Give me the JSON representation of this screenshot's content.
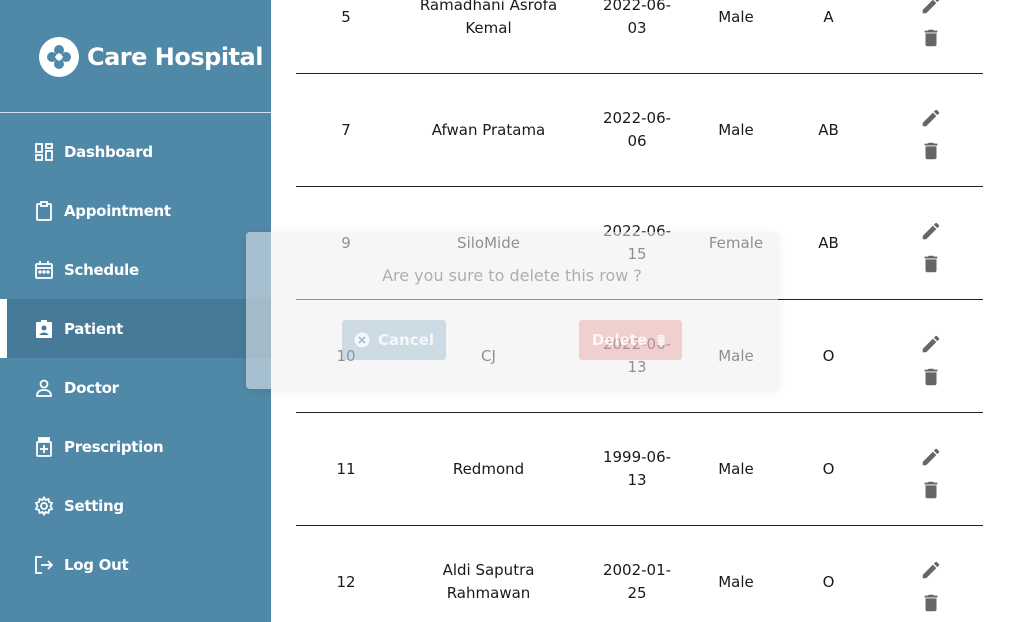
{
  "brand": {
    "name": "Care Hospital",
    "logo_icon": "hospital-cross-logo"
  },
  "sidebar": {
    "items": [
      {
        "label": "Dashboard",
        "icon": "dashboard-icon"
      },
      {
        "label": "Appointment",
        "icon": "clipboard-icon"
      },
      {
        "label": "Schedule",
        "icon": "calendar-icon"
      },
      {
        "label": "Patient",
        "icon": "patient-badge-icon",
        "active": true
      },
      {
        "label": "Doctor",
        "icon": "person-icon"
      },
      {
        "label": "Prescription",
        "icon": "medicine-bottle-icon"
      },
      {
        "label": "Setting",
        "icon": "gear-icon"
      },
      {
        "label": "Log Out",
        "icon": "logout-icon"
      }
    ]
  },
  "table": {
    "rows": [
      {
        "id": "5",
        "name": "Ramadhani Asrofa Kemal",
        "birth_date": "2022-06-03",
        "gender": "Male",
        "blood_type": "A"
      },
      {
        "id": "7",
        "name": "Afwan Pratama",
        "birth_date": "2022-06-06",
        "gender": "Male",
        "blood_type": "AB"
      },
      {
        "id": "9",
        "name": "SiloMide",
        "birth_date": "2022-06-15",
        "gender": "Female",
        "blood_type": "AB"
      },
      {
        "id": "10",
        "name": "CJ",
        "birth_date": "2022-06-13",
        "gender": "Male",
        "blood_type": "O"
      },
      {
        "id": "11",
        "name": "Redmond",
        "birth_date": "1999-06-13",
        "gender": "Male",
        "blood_type": "O"
      },
      {
        "id": "12",
        "name": "Aldi Saputra Rahmawan",
        "birth_date": "2002-01-25",
        "gender": "Male",
        "blood_type": "O"
      }
    ]
  },
  "dialog": {
    "message": "Are you sure to delete this row ?",
    "cancel_label": "Cancel",
    "delete_label": "Delete"
  },
  "colors": {
    "sidebar_bg": "#5088a8",
    "sidebar_active_bg": "#477a98",
    "action_icon": "#666666"
  }
}
